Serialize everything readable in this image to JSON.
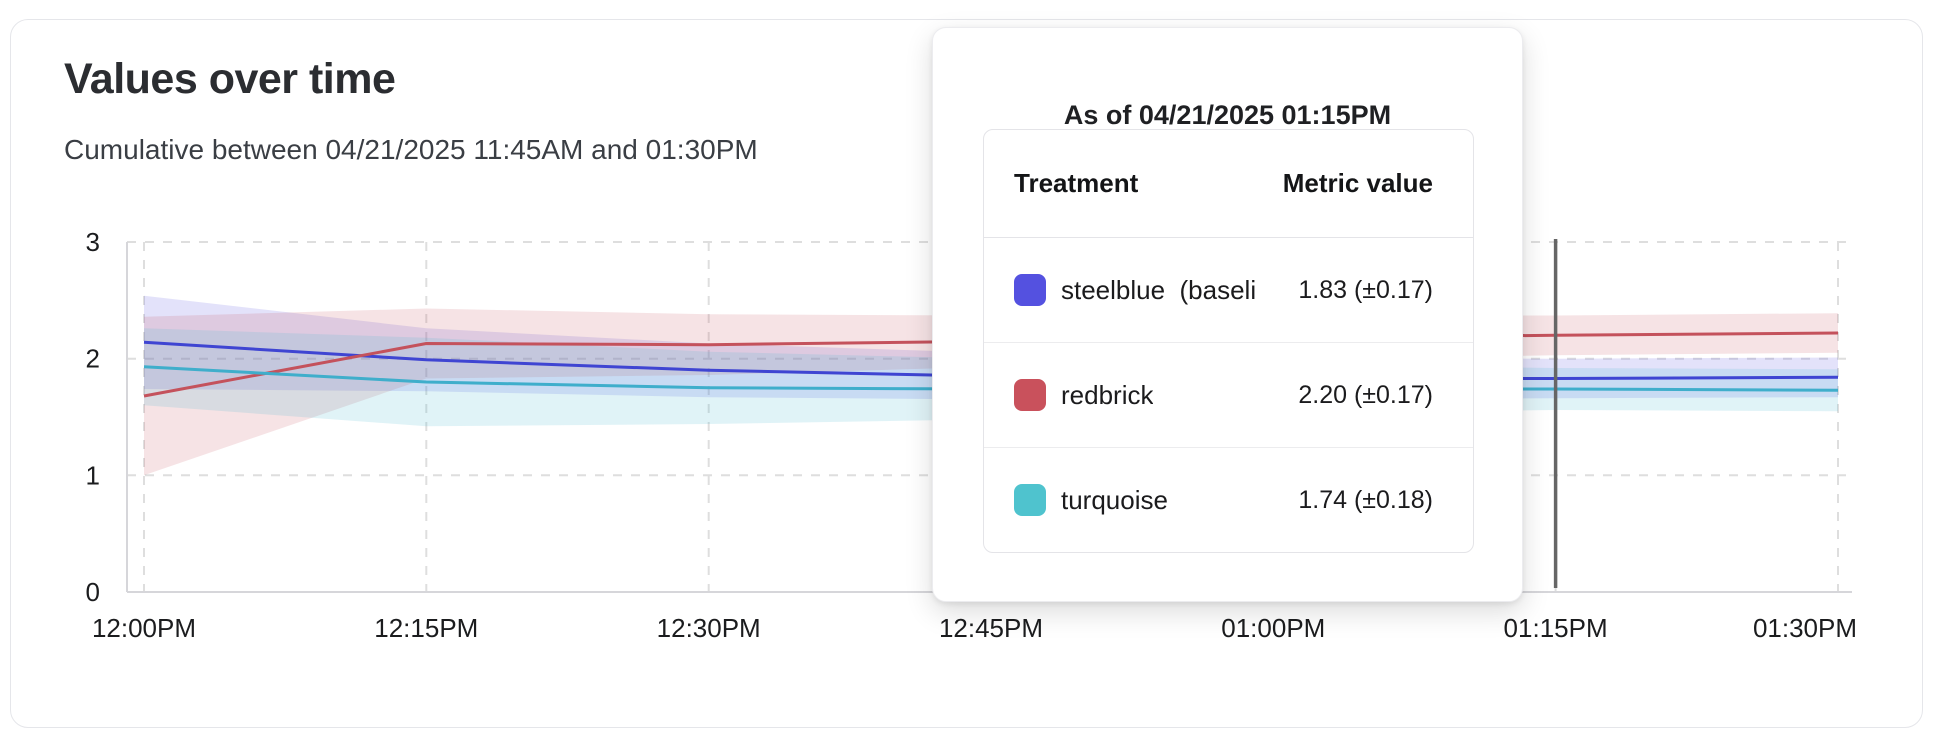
{
  "page": {
    "title": "Values over time",
    "subtitle": "Cumulative between 04/21/2025 11:45AM and 01:30PM"
  },
  "tooltip": {
    "title": "As of 04/21/2025 01:15PM",
    "columns": {
      "treatment": "Treatment",
      "metric": "Metric value"
    },
    "rows": [
      {
        "label": "steelblue  (baseli",
        "value": "1.83 (±0.17)",
        "swatch": "#5451E0"
      },
      {
        "label": "redbrick",
        "value": "2.20 (±0.17)",
        "swatch": "#C9515C"
      },
      {
        "label": "turquoise",
        "value": "1.74 (±0.18)",
        "swatch": "#4FC3CE"
      }
    ]
  },
  "chart_data": {
    "type": "line",
    "title": "Values over time",
    "subtitle": "Cumulative between 04/21/2025 11:45AM and 01:30PM",
    "x_tick_labels": [
      "12:00PM",
      "12:15PM",
      "12:30PM",
      "12:45PM",
      "01:00PM",
      "01:15PM",
      "01:30PM"
    ],
    "y_ticks": [
      0,
      1,
      2,
      3
    ],
    "ylim": [
      0,
      3
    ],
    "grid": "dashed",
    "legend_position": "none",
    "crosshair": {
      "x_index": 5,
      "x_label": "01:15PM",
      "color": "#666666"
    },
    "series": [
      {
        "name": "steelblue (baseline)",
        "line_color": "#3F45D2",
        "band_color": "rgba(88,85,224,0.17)",
        "values": [
          2.14,
          1.99,
          1.9,
          1.85,
          1.83,
          1.83,
          1.84
        ],
        "ci": [
          0.4,
          0.27,
          0.23,
          0.2,
          0.18,
          0.17,
          0.17
        ]
      },
      {
        "name": "redbrick",
        "line_color": "#C4525C",
        "band_color": "rgba(201,81,92,0.16)",
        "values": [
          1.68,
          2.13,
          2.12,
          2.15,
          2.18,
          2.2,
          2.22
        ],
        "ci": [
          0.68,
          0.3,
          0.26,
          0.22,
          0.19,
          0.17,
          0.17
        ]
      },
      {
        "name": "turquoise",
        "line_color": "#3FAECB",
        "band_color": "rgba(72,185,205,0.17)",
        "values": [
          1.93,
          1.8,
          1.75,
          1.74,
          1.74,
          1.74,
          1.73
        ],
        "ci": [
          0.33,
          0.38,
          0.31,
          0.26,
          0.21,
          0.18,
          0.18
        ]
      }
    ]
  }
}
